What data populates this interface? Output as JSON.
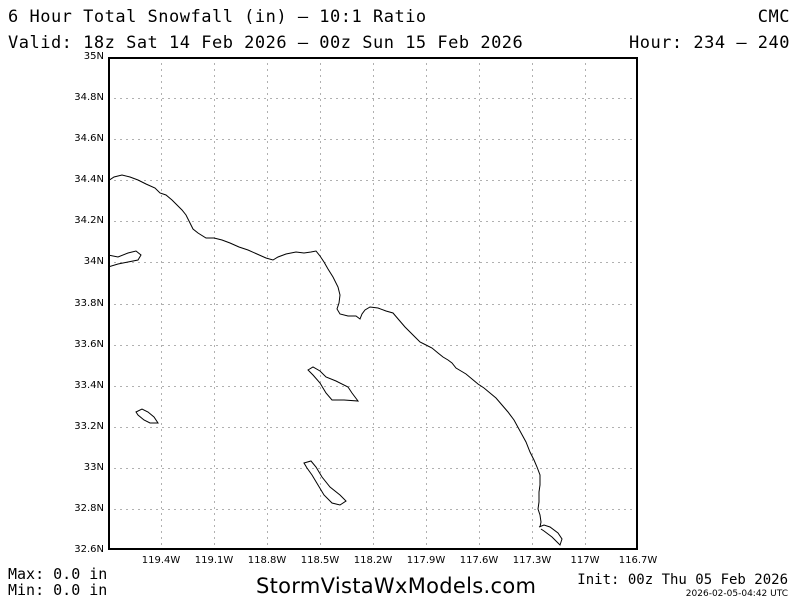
{
  "header": {
    "title": "6 Hour Total Snowfall (in) – 10:1 Ratio",
    "model": "CMC",
    "valid": "Valid: 18z Sat 14 Feb 2026 – 00z Sun 15 Feb 2026",
    "hour": "Hour: 234 – 240"
  },
  "map": {
    "lat_labels": [
      "35N",
      "34.8N",
      "34.6N",
      "34.4N",
      "34.2N",
      "34N",
      "33.8N",
      "33.6N",
      "33.4N",
      "33.2N",
      "33N",
      "32.8N",
      "32.6N"
    ],
    "lon_labels": [
      "119.4W",
      "119.1W",
      "118.8W",
      "118.5W",
      "118.2W",
      "117.9W",
      "117.6W",
      "117.3W",
      "117W",
      "116.7W"
    ],
    "grid_color": "#b0b0b0",
    "outline_color": "#000000"
  },
  "footer": {
    "max": "Max: 0.0 in",
    "min": "Min: 0.0 in",
    "site": "StormVistaWxModels.com",
    "init": "Init: 00z Thu 05 Feb 2026",
    "timestamp": "2026-02-05-04:42 UTC"
  }
}
